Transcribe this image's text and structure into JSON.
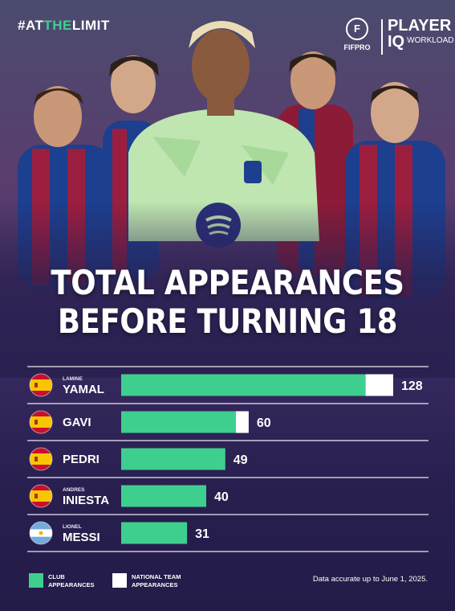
{
  "header": {
    "hashtag_prefix": "#AT",
    "hashtag_highlight": "THE",
    "hashtag_suffix": "LIMIT",
    "brand_fifpro": "FIFPRO",
    "brand_fifpro_mark": "F",
    "brand_player": "PLAYER",
    "brand_iq": "IQ",
    "brand_workload": "WORKLOAD"
  },
  "chart_data": {
    "type": "bar",
    "orientation": "horizontal",
    "stacked": true,
    "title_lines": [
      "TOTAL APPEARANCES",
      "BEFORE TURNING 18"
    ],
    "categories": [
      {
        "first": "LAMINE",
        "last": "YAMAL",
        "flag": "spain"
      },
      {
        "first": "",
        "last": "GAVI",
        "flag": "spain"
      },
      {
        "first": "",
        "last": "PEDRI",
        "flag": "spain"
      },
      {
        "first": "ANDRES",
        "last": "INIESTA",
        "flag": "spain"
      },
      {
        "first": "LIONEL",
        "last": "MESSI",
        "flag": "argentina"
      }
    ],
    "series": [
      {
        "name": "CLUB APPEARANCES",
        "color": "#3ecf8e",
        "values": [
          115,
          54,
          49,
          40,
          31
        ]
      },
      {
        "name": "NATIONAL TEAM APPEARANCES",
        "color": "#ffffff",
        "values": [
          13,
          6,
          0,
          0,
          0
        ]
      }
    ],
    "totals": [
      "128",
      "60",
      "49",
      "40",
      "31"
    ],
    "xlim": [
      0,
      128
    ],
    "grid": false,
    "legend": "bottom-left"
  },
  "footer": {
    "note": "Data accurate up to June 1, 2025."
  }
}
